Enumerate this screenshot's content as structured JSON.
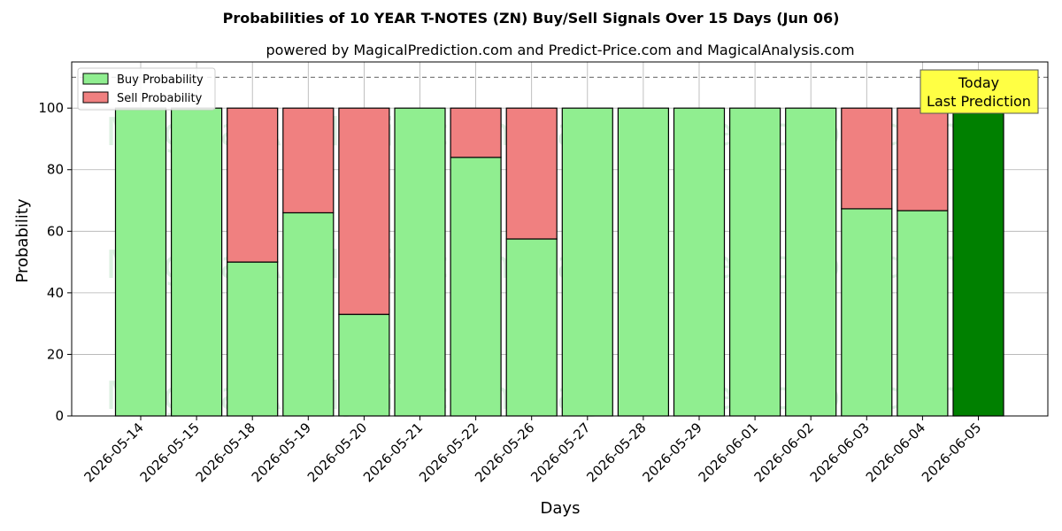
{
  "chart_data": {
    "type": "bar",
    "stacked": true,
    "title": "Probabilities of 10 YEAR T-NOTES (ZN) Buy/Sell Signals Over 15 Days (Jun 06)",
    "subtitle": "powered by MagicalPrediction.com and Predict-Price.com and MagicalAnalysis.com",
    "xlabel": "Days",
    "ylabel": "Probability",
    "ylim": [
      0,
      115
    ],
    "yticks": [
      0,
      20,
      40,
      60,
      80,
      100
    ],
    "grid": true,
    "legend_placement": "top-left",
    "reference_line": {
      "y": 110,
      "style": "dashed"
    },
    "categories": [
      "2026-05-14",
      "2026-05-15",
      "2026-05-18",
      "2026-05-19",
      "2026-05-20",
      "2026-05-21",
      "2026-05-22",
      "2026-05-26",
      "2026-05-27",
      "2026-05-28",
      "2026-05-29",
      "2026-06-01",
      "2026-06-02",
      "2026-06-03",
      "2026-06-04",
      "2026-06-05"
    ],
    "series": [
      {
        "name": "Buy Probability",
        "color": "#90ee90",
        "values": [
          100,
          100,
          50,
          66,
          33,
          100,
          84,
          57.5,
          100,
          100,
          100,
          100,
          100,
          67.3,
          66.7,
          100
        ]
      },
      {
        "name": "Sell Probability",
        "color": "#f08080",
        "values": [
          0,
          0,
          50,
          34,
          67,
          0,
          16,
          42.5,
          0,
          0,
          0,
          0,
          0,
          32.7,
          33.3,
          0
        ]
      }
    ],
    "highlight": {
      "index": 15,
      "color": "#008000"
    },
    "annotation": {
      "lines": [
        "Today",
        "Last Prediction"
      ],
      "background": "#ffff44"
    },
    "watermarks": [
      "MagicalAnalysis.com",
      "MagicalPrediction.com"
    ]
  }
}
